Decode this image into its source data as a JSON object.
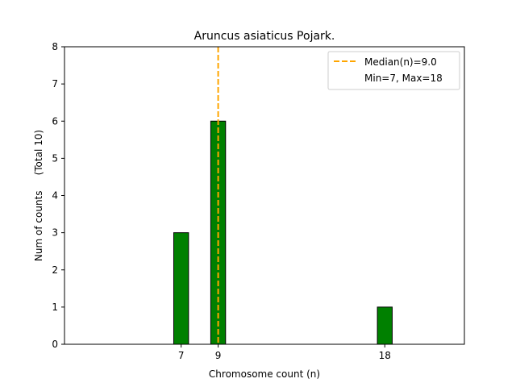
{
  "chart_data": {
    "type": "bar",
    "title": "Aruncus asiaticus Pojark.",
    "xlabel": "Chromosome count (n)",
    "ylabel": "Num of counts     (Total 10)",
    "x_ticks": [
      7,
      9,
      18
    ],
    "y_ticks": [
      0,
      1,
      2,
      3,
      4,
      5,
      6,
      7,
      8
    ],
    "xlim": [
      0.7,
      22.3
    ],
    "ylim": [
      0,
      8
    ],
    "bars": [
      {
        "x": 7,
        "value": 3
      },
      {
        "x": 9,
        "value": 6
      },
      {
        "x": 18,
        "value": 1
      }
    ],
    "bar_color": "#008000",
    "bar_edge_color": "#000000",
    "median_line": {
      "x": 9.0,
      "color": "#ffa500",
      "style": "dashed"
    },
    "legend": {
      "placement": "top-right",
      "entries": [
        {
          "label": "Median(n)=9.0",
          "marker": "dashed-line",
          "color": "#ffa500"
        },
        {
          "label": "Min=7, Max=18",
          "marker": "none"
        }
      ]
    },
    "grid": false
  }
}
